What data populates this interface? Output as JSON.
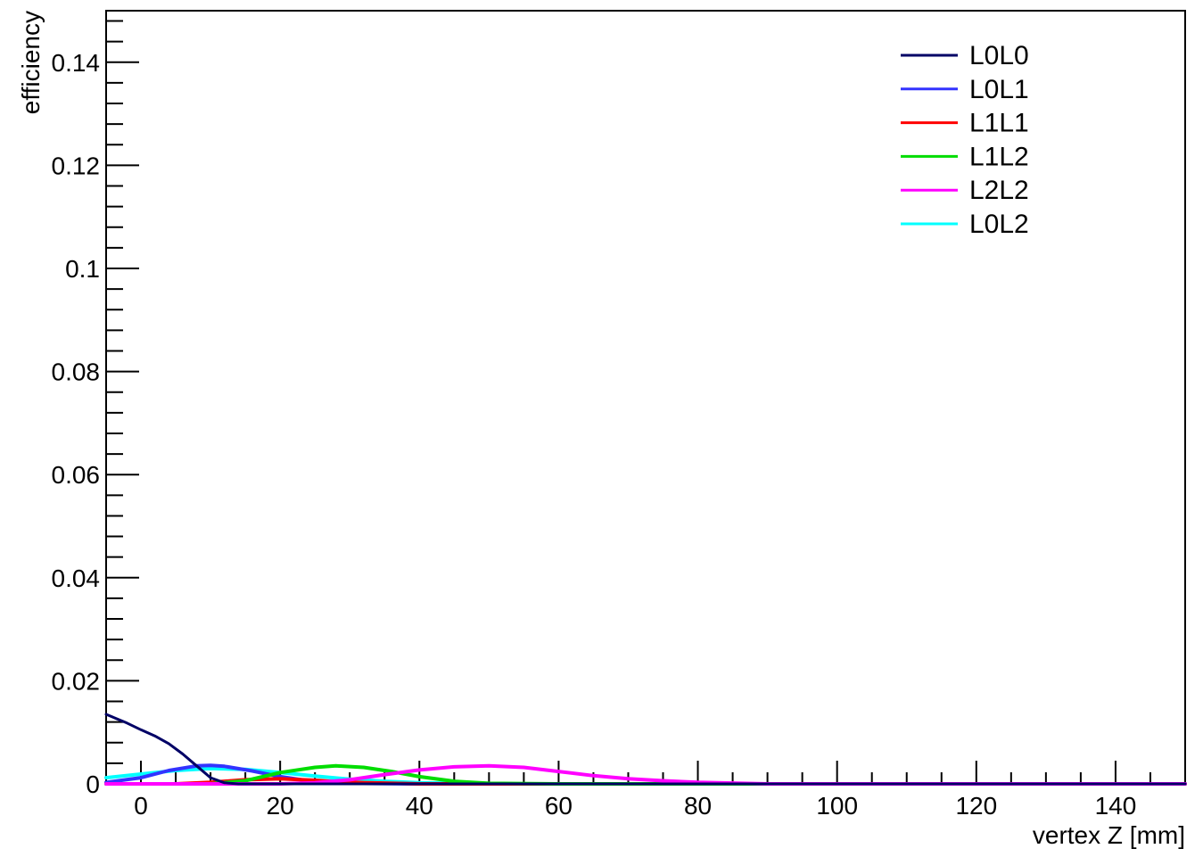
{
  "chart_data": {
    "type": "line",
    "title": "",
    "xlabel": "vertex Z [mm]",
    "ylabel": "efficiency",
    "xlim": [
      -5,
      150
    ],
    "ylim": [
      0,
      0.15
    ],
    "x_ticks": [
      0,
      20,
      40,
      60,
      80,
      100,
      120,
      140
    ],
    "x_tick_labels": [
      "0",
      "20",
      "40",
      "60",
      "80",
      "100",
      "120",
      "140"
    ],
    "y_ticks": [
      0,
      0.02,
      0.04,
      0.06,
      0.08,
      0.1,
      0.12,
      0.14
    ],
    "y_tick_labels": [
      "0",
      "0.02",
      "0.04",
      "0.06",
      "0.08",
      "0.1",
      "0.12",
      "0.14"
    ],
    "grid": false,
    "legend_position": "top-right",
    "series": [
      {
        "name": "L0L0",
        "color": "#000066",
        "x": [
          -5,
          -2,
          0,
          2,
          4,
          6,
          8,
          10,
          12,
          14,
          20,
          40,
          80,
          150
        ],
        "y": [
          0.0135,
          0.0118,
          0.0105,
          0.0093,
          0.0078,
          0.0058,
          0.0035,
          0.0012,
          0.0002,
          0,
          0,
          0,
          0,
          0
        ]
      },
      {
        "name": "L0L1",
        "color": "#3333ff",
        "x": [
          -5,
          0,
          4,
          8,
          10,
          12,
          16,
          20,
          24,
          30,
          40,
          80,
          150
        ],
        "y": [
          0.0003,
          0.0012,
          0.0026,
          0.0035,
          0.0036,
          0.0034,
          0.0025,
          0.0014,
          0.0006,
          0.0001,
          0,
          0,
          0
        ]
      },
      {
        "name": "L1L1",
        "color": "#ff0000",
        "x": [
          -5,
          5,
          10,
          15,
          20,
          25,
          30,
          40,
          80,
          150
        ],
        "y": [
          0,
          0,
          0.0003,
          0.0008,
          0.001,
          0.0007,
          0.0003,
          0,
          0,
          0
        ]
      },
      {
        "name": "L1L2",
        "color": "#00dd00",
        "x": [
          -5,
          10,
          15,
          20,
          25,
          28,
          32,
          36,
          40,
          45,
          50,
          60,
          80,
          150
        ],
        "y": [
          0,
          0,
          0.0006,
          0.0022,
          0.0032,
          0.0035,
          0.0032,
          0.0024,
          0.0014,
          0.0005,
          0.0001,
          0,
          0,
          0
        ]
      },
      {
        "name": "L2L2",
        "color": "#ff00ff",
        "x": [
          -5,
          20,
          25,
          30,
          35,
          40,
          45,
          50,
          55,
          60,
          65,
          70,
          75,
          80,
          90,
          150
        ],
        "y": [
          0,
          0,
          0.0002,
          0.0008,
          0.0018,
          0.0027,
          0.0033,
          0.0035,
          0.0032,
          0.0024,
          0.0016,
          0.001,
          0.0006,
          0.0003,
          0,
          0
        ]
      },
      {
        "name": "L0L2",
        "color": "#00ffff",
        "x": [
          -5,
          0,
          5,
          10,
          15,
          20,
          25,
          30,
          35,
          40,
          45,
          50,
          80,
          150
        ],
        "y": [
          0.0012,
          0.0019,
          0.0026,
          0.003,
          0.0028,
          0.0022,
          0.0015,
          0.0009,
          0.0005,
          0.0002,
          0.0001,
          0,
          0,
          0
        ]
      }
    ]
  }
}
